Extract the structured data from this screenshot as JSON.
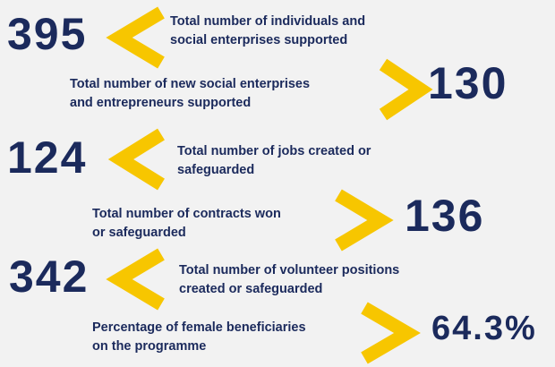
{
  "items": [
    {
      "number": "395",
      "label": [
        "Total number of individuals and",
        "social enterprises supported"
      ]
    },
    {
      "number": "130",
      "label": [
        "Total number of new social enterprises",
        "and entrepreneurs supported"
      ]
    },
    {
      "number": "124",
      "label": [
        "Total number of jobs created or",
        "safeguarded"
      ]
    },
    {
      "number": "136",
      "label": [
        "Total number of contracts won",
        "or safeguarded"
      ]
    },
    {
      "number": "342",
      "label": [
        "Total number of volunteer positions",
        "created or safeguarded"
      ]
    },
    {
      "number": "64.3%",
      "label": [
        "Percentage of female beneficiaries",
        "on the programme"
      ]
    }
  ]
}
